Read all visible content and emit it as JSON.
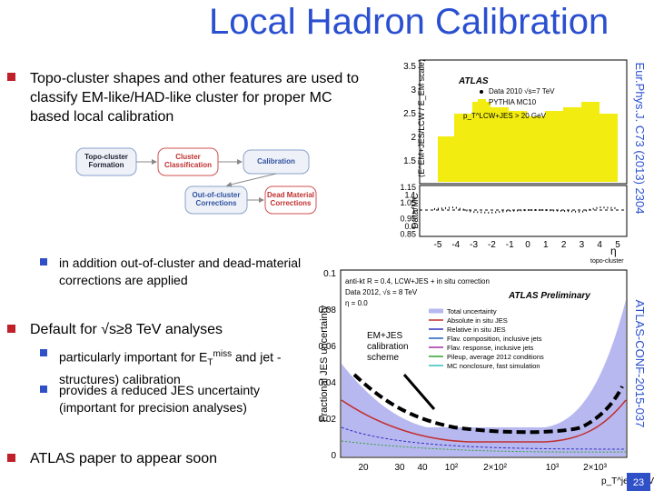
{
  "title": "Local Hadron Calibration",
  "bullet1": "Topo-cluster shapes and other features are used to classify EM-like/HAD-like cluster for proper MC based local calibration",
  "diagram": {
    "nodes": [
      "Topo-cluster Formation",
      "Cluster Classification",
      "Calibration",
      "Out-of-cluster Corrections",
      "Dead Material Corrections"
    ]
  },
  "sub1": "in addition out-of-cluster and dead-material corrections are applied",
  "bullet2": "Default for √s≥8 TeV analyses",
  "sub2": [
    "particularly important for E",
    "T",
    "miss",
    " and jet -structures) calibration"
  ],
  "sub3": "provides a reduced JES uncertainty (important for precision analyses)",
  "bullet3": "ATLAS paper to appear soon",
  "annotation": "EM+JES calibration scheme",
  "ref1": "Eur.Phys.J. C73 (2013) 2304",
  "ref2": "ATLAS-CONF-2015-037",
  "page": "23",
  "plot1": {
    "ylabel": "⟨E^EM+JES/LCW / E_EM scale⟩",
    "atlas": "ATLAS",
    "legend": [
      "Data 2010 √s=7 TeV",
      "PYTHIA MC10"
    ],
    "cut": "p_T^LCW+JES > 20 GeV",
    "yticks": [
      "3.5",
      "3",
      "2.5",
      "2",
      "1.5"
    ],
    "ratio_label": "Data/MC",
    "ratio_ticks": [
      "1.15",
      "1.1",
      "1.05",
      "1",
      "0.95",
      "0.9",
      "0.85"
    ],
    "xticks": [
      "-5",
      "-4",
      "-3",
      "-2",
      "-1",
      "0",
      "1",
      "2",
      "3",
      "4",
      "5"
    ],
    "xlabel": "η",
    "xlabel_sub": "topo-cluster"
  },
  "plot2": {
    "ylabel": "Fractional JES uncertainty",
    "info": [
      "anti-kt R = 0.4, LCW+JES + in situ correction",
      "Data 2012, √s = 8 TeV",
      "η = 0.0"
    ],
    "atlas": "ATLAS Preliminary",
    "legend": [
      "Total uncertainty",
      "Absolute in situ JES",
      "Relative in situ JES",
      "Flav. composition, inclusive jets",
      "Flav. response, inclusive jets",
      "Pileup, average 2012 conditions",
      "MC nonclosure, fast simulation"
    ],
    "yticks": [
      "0.1",
      "0.08",
      "0.06",
      "0.04",
      "0.02",
      "0"
    ],
    "xticks": [
      "20",
      "30",
      "40",
      "10²",
      "2×10²",
      "10³",
      "2×10³"
    ],
    "xlabel": "p_T^jet [GeV]"
  }
}
